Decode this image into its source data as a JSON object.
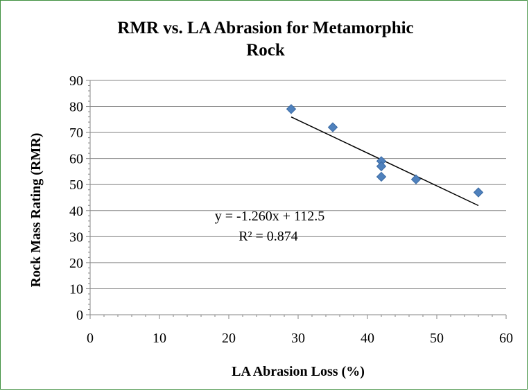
{
  "chart_data": {
    "type": "scatter",
    "title_line1": "RMR vs. LA Abrasion for Metamorphic",
    "title_line2": "Rock",
    "xlabel": "LA Abrasion Loss (%)",
    "ylabel": "Rock Mass Rating (RMR)",
    "xlim": [
      0,
      60
    ],
    "ylim": [
      0,
      90
    ],
    "x_ticks": [
      "0",
      "10",
      "20",
      "30",
      "40",
      "50",
      "60"
    ],
    "y_ticks": [
      "0",
      "10",
      "20",
      "30",
      "40",
      "50",
      "60",
      "70",
      "80",
      "90"
    ],
    "grid": "horizontal",
    "legend": "none",
    "points": [
      {
        "x": 29,
        "y": 79
      },
      {
        "x": 35,
        "y": 72
      },
      {
        "x": 42,
        "y": 59
      },
      {
        "x": 42,
        "y": 57
      },
      {
        "x": 42,
        "y": 53
      },
      {
        "x": 47,
        "y": 52
      },
      {
        "x": 56,
        "y": 47
      }
    ],
    "trendline": {
      "type": "linear",
      "slope": -1.26,
      "intercept": 112.5,
      "x_range": [
        29,
        56
      ],
      "equation": "y = -1.260x + 112.5",
      "r_squared": "R² = 0.874"
    },
    "colors": {
      "marker": "#4f81bd",
      "marker_edge": "#3a6aa3",
      "trendline": "#000000",
      "grid": "#868686",
      "border": "#3f8f3f"
    }
  }
}
